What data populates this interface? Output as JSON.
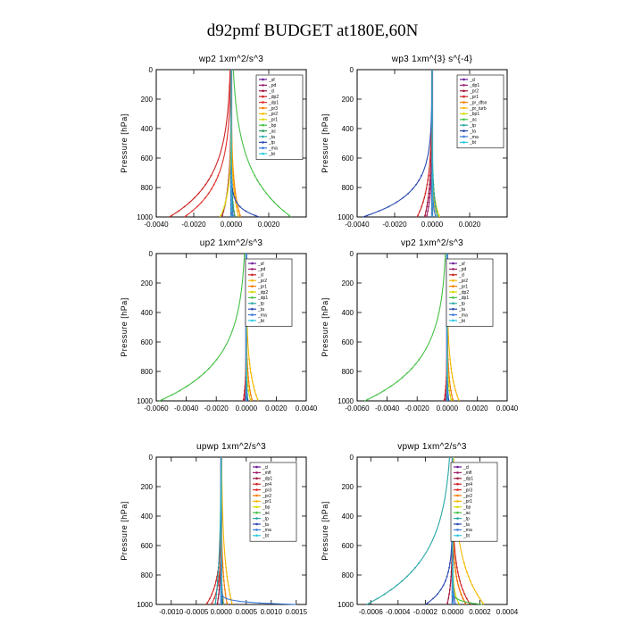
{
  "figure_title": "d92pmf  BUDGET at180E,60N",
  "chart_data": [
    {
      "type": "line",
      "title": "wp2   1xm^2/s^3",
      "ylabel": "Pressure [hPa]",
      "xlim": [
        -0.004,
        0.004
      ],
      "ylim": [
        1000,
        0
      ],
      "xticks": [
        "-0.0040",
        "-0.0020",
        "0.0000",
        "0.0020"
      ],
      "xtick_values": [
        -0.004,
        -0.002,
        0,
        0.002
      ],
      "yticks": [
        "0",
        "200",
        "400",
        "600",
        "800",
        "1000"
      ],
      "series": [
        {
          "name": "_sf",
          "color": "#6a1b9a",
          "anchor_x": 0,
          "peak_x": 0,
          "depth": 0
        },
        {
          "name": "_pd",
          "color": "#9c1f6e",
          "anchor_x": 0,
          "peak_x": 0.0001,
          "depth": 150
        },
        {
          "name": "_cl",
          "color": "#a0143c",
          "anchor_x": 0,
          "peak_x": -0.0005,
          "depth": 200
        },
        {
          "name": "_dp2",
          "color": "#cc2222",
          "anchor_x": 0,
          "peak_x": -0.0033,
          "depth": 250
        },
        {
          "name": "_dp1",
          "color": "#e0302a",
          "anchor_x": 0,
          "peak_x": -0.0025,
          "depth": 220
        },
        {
          "name": "_pr3",
          "color": "#f57c00",
          "anchor_x": 0,
          "peak_x": 0.0005,
          "depth": 200
        },
        {
          "name": "_pr2",
          "color": "#f5b800",
          "anchor_x": 0,
          "peak_x": 0.0004,
          "depth": 180
        },
        {
          "name": "_pr1",
          "color": "#d9d900",
          "anchor_x": 0,
          "peak_x": -0.0006,
          "depth": 150
        },
        {
          "name": "_bp",
          "color": "#44c044",
          "anchor_x": 0,
          "peak_x": 0.0032,
          "depth": 300
        },
        {
          "name": "_ac",
          "color": "#2a9a5a",
          "anchor_x": 0,
          "peak_x": 0.0002,
          "depth": 120
        },
        {
          "name": "_ta",
          "color": "#2aa6a6",
          "anchor_x": 0,
          "peak_x": 0.0001,
          "depth": 100
        },
        {
          "name": "_tp",
          "color": "#2a4ab0",
          "anchor_x": 0,
          "peak_x": 0.0015,
          "depth": 60
        },
        {
          "name": "_ma",
          "color": "#3a7ad8",
          "anchor_x": 0,
          "peak_x": 0.0001,
          "depth": 100
        },
        {
          "name": "_bt",
          "color": "#28c8e0",
          "anchor_x": 0,
          "peak_x": 0,
          "depth": 60
        }
      ]
    },
    {
      "type": "line",
      "title": "wp3   1xm^{3} s^{-4}",
      "ylabel": "Pressure [hPa]",
      "xlim": [
        -0.004,
        0.004
      ],
      "ylim": [
        1000,
        0
      ],
      "xticks": [
        "-0.0040",
        "-0.0020",
        "0.0000",
        "0.0020"
      ],
      "xtick_values": [
        -0.004,
        -0.002,
        0,
        0.002
      ],
      "yticks": [
        "0",
        "200",
        "400",
        "600",
        "800",
        "1000"
      ],
      "series": [
        {
          "name": "_cl",
          "color": "#6a1b9a",
          "anchor_x": 0,
          "peak_x": 0,
          "depth": 0
        },
        {
          "name": "_dp1",
          "color": "#9c1f6e",
          "anchor_x": 0,
          "peak_x": -0.0003,
          "depth": 150
        },
        {
          "name": "_pr2",
          "color": "#a0143c",
          "anchor_x": 0,
          "peak_x": -0.0004,
          "depth": 200
        },
        {
          "name": "_pr1",
          "color": "#cc2222",
          "anchor_x": 0,
          "peak_x": -0.0008,
          "depth": 200
        },
        {
          "name": "_pr_dfsn",
          "color": "#f57c00",
          "anchor_x": 0,
          "peak_x": 0.0004,
          "depth": 120
        },
        {
          "name": "_pr_turb",
          "color": "#f5b800",
          "anchor_x": 0,
          "peak_x": 0.0003,
          "depth": 100
        },
        {
          "name": "_bp1",
          "color": "#d9d900",
          "anchor_x": 0,
          "peak_x": 0.0004,
          "depth": 120
        },
        {
          "name": "_ac",
          "color": "#44c044",
          "anchor_x": 0,
          "peak_x": 0.0002,
          "depth": 80
        },
        {
          "name": "_tp",
          "color": "#2aa6a6",
          "anchor_x": 0,
          "peak_x": 0.0003,
          "depth": 150
        },
        {
          "name": "_ta",
          "color": "#2a4ab0",
          "anchor_x": 0,
          "peak_x": -0.0037,
          "depth": 150
        },
        {
          "name": "_ma",
          "color": "#3a7ad8",
          "anchor_x": 0,
          "peak_x": 0.0002,
          "depth": 80
        },
        {
          "name": "_bt",
          "color": "#28c8e0",
          "anchor_x": 0,
          "peak_x": 0,
          "depth": 60
        }
      ]
    },
    {
      "type": "line",
      "title": "up2   1xm^2/s^3",
      "ylabel": "Pressure [hPa]",
      "xlim": [
        -0.006,
        0.004
      ],
      "ylim": [
        1000,
        0
      ],
      "xticks": [
        "-0.0060",
        "-0.0040",
        "-0.0020",
        "0.0000",
        "0.0020",
        "0.0040"
      ],
      "xtick_values": [
        -0.006,
        -0.004,
        -0.002,
        0,
        0.002,
        0.004
      ],
      "yticks": [
        "0",
        "200",
        "400",
        "600",
        "800",
        "1000"
      ],
      "series": [
        {
          "name": "_sf",
          "color": "#6a1b9a",
          "anchor_x": 0,
          "peak_x": 0,
          "depth": 0
        },
        {
          "name": "_pd",
          "color": "#9c1f6e",
          "anchor_x": 0,
          "peak_x": -0.0001,
          "depth": 100
        },
        {
          "name": "_cl",
          "color": "#cc2222",
          "anchor_x": 0,
          "peak_x": -0.0002,
          "depth": 120
        },
        {
          "name": "_pr2",
          "color": "#f5b800",
          "anchor_x": 0,
          "peak_x": 0.0008,
          "depth": 200
        },
        {
          "name": "_pr1",
          "color": "#f57c00",
          "anchor_x": 0,
          "peak_x": 0.0004,
          "depth": 150
        },
        {
          "name": "_dp2",
          "color": "#d9d900",
          "anchor_x": 0,
          "peak_x": 0.0003,
          "depth": 100
        },
        {
          "name": "_dp1",
          "color": "#44c044",
          "anchor_x": 0,
          "peak_x": -0.0058,
          "depth": 260
        },
        {
          "name": "_tp",
          "color": "#2aa6a6",
          "anchor_x": 0,
          "peak_x": 0.0001,
          "depth": 80
        },
        {
          "name": "_ta",
          "color": "#2a4ab0",
          "anchor_x": 0,
          "peak_x": 0.0001,
          "depth": 80
        },
        {
          "name": "_ma",
          "color": "#3a7ad8",
          "anchor_x": 0,
          "peak_x": 0,
          "depth": 60
        },
        {
          "name": "_bt",
          "color": "#28c8e0",
          "anchor_x": 0,
          "peak_x": 0,
          "depth": 60
        }
      ]
    },
    {
      "type": "line",
      "title": "vp2   1xm^2/s^3",
      "ylabel": "Pressure [hPa]",
      "xlim": [
        -0.006,
        0.004
      ],
      "ylim": [
        1000,
        0
      ],
      "xticks": [
        "-0.0060",
        "-0.0040",
        "-0.0020",
        "0.0000",
        "0.0020",
        "0.0040"
      ],
      "xtick_values": [
        -0.006,
        -0.004,
        -0.002,
        0,
        0.002,
        0.004
      ],
      "yticks": [
        "0",
        "200",
        "400",
        "600",
        "800",
        "1000"
      ],
      "series": [
        {
          "name": "_sf",
          "color": "#6a1b9a",
          "anchor_x": 0,
          "peak_x": 0,
          "depth": 0
        },
        {
          "name": "_pd",
          "color": "#9c1f6e",
          "anchor_x": 0,
          "peak_x": -0.0001,
          "depth": 100
        },
        {
          "name": "_cl",
          "color": "#cc2222",
          "anchor_x": 0,
          "peak_x": -0.0002,
          "depth": 120
        },
        {
          "name": "_pr2",
          "color": "#f5b800",
          "anchor_x": 0,
          "peak_x": 0.0008,
          "depth": 200
        },
        {
          "name": "_pr1",
          "color": "#f57c00",
          "anchor_x": 0,
          "peak_x": 0.0004,
          "depth": 150
        },
        {
          "name": "_dp2",
          "color": "#d9d900",
          "anchor_x": 0,
          "peak_x": 0.0003,
          "depth": 100
        },
        {
          "name": "_dp1",
          "color": "#44c044",
          "anchor_x": 0,
          "peak_x": -0.0055,
          "depth": 260
        },
        {
          "name": "_tp",
          "color": "#2aa6a6",
          "anchor_x": 0,
          "peak_x": 0.0001,
          "depth": 80
        },
        {
          "name": "_ta",
          "color": "#2a4ab0",
          "anchor_x": 0,
          "peak_x": 0.0001,
          "depth": 80
        },
        {
          "name": "_ma",
          "color": "#3a7ad8",
          "anchor_x": 0,
          "peak_x": 0,
          "depth": 60
        },
        {
          "name": "_bt",
          "color": "#28c8e0",
          "anchor_x": 0,
          "peak_x": 0,
          "depth": 60
        }
      ]
    },
    {
      "type": "line",
      "title": "upwp   1xm^2/s^3",
      "ylabel": "Pressure [hPa]",
      "xlim": [
        -0.0013,
        0.0017
      ],
      "ylim": [
        1000,
        0
      ],
      "xticks": [
        "-0.0010",
        "-0.0005",
        "0.0000",
        "0.0005",
        "0.0010",
        "0.0015"
      ],
      "xtick_values": [
        -0.001,
        -0.0005,
        0,
        0.0005,
        0.001,
        0.0015
      ],
      "yticks": [
        "0",
        "200",
        "400",
        "600",
        "800",
        "1000"
      ],
      "series": [
        {
          "name": "_cl",
          "color": "#6a1b9a",
          "anchor_x": 0,
          "peak_x": 0,
          "depth": 0
        },
        {
          "name": "_mfl",
          "color": "#9c1f6e",
          "anchor_x": 0,
          "peak_x": 5e-05,
          "depth": 100
        },
        {
          "name": "_dp1",
          "color": "#a0143c",
          "anchor_x": 0,
          "peak_x": -8e-05,
          "depth": 150
        },
        {
          "name": "_pr4",
          "color": "#cc2222",
          "anchor_x": 0,
          "peak_x": -0.0003,
          "depth": 150
        },
        {
          "name": "_pr3",
          "color": "#e0302a",
          "anchor_x": 0,
          "peak_x": -0.0002,
          "depth": 120
        },
        {
          "name": "_pr2",
          "color": "#f57c00",
          "anchor_x": 0,
          "peak_x": 0.00012,
          "depth": 200
        },
        {
          "name": "_pr1",
          "color": "#f5b800",
          "anchor_x": 0,
          "peak_x": 0.00022,
          "depth": 300
        },
        {
          "name": "_bp",
          "color": "#d9d900",
          "anchor_x": 0,
          "peak_x": 5e-05,
          "depth": 80
        },
        {
          "name": "_ac",
          "color": "#44c044",
          "anchor_x": 0,
          "peak_x": 4e-05,
          "depth": 80
        },
        {
          "name": "_tp",
          "color": "#2aa6a6",
          "anchor_x": 0,
          "peak_x": -0.00012,
          "depth": 320
        },
        {
          "name": "_ta",
          "color": "#2a4ab0",
          "anchor_x": 0,
          "peak_x": 3e-05,
          "depth": 80
        },
        {
          "name": "_ma",
          "color": "#3a7ad8",
          "anchor_x": 0,
          "peak_x": 0.0015,
          "depth": 15
        },
        {
          "name": "_bt",
          "color": "#28c8e0",
          "anchor_x": 0,
          "peak_x": 0,
          "depth": 60
        }
      ]
    },
    {
      "type": "line",
      "title": "vpwp   1xm^2/s^3",
      "ylabel": "Pressure [hPa]",
      "xlim": [
        -0.0007,
        0.0004
      ],
      "ylim": [
        1000,
        0
      ],
      "xticks": [
        "-0.0006",
        "-0.0004",
        "-0.0002",
        "0.0000",
        "0.0002",
        "0.0004"
      ],
      "xtick_values": [
        -0.0006,
        -0.0004,
        -0.0002,
        0,
        0.0002,
        0.0004
      ],
      "yticks": [
        "0",
        "200",
        "400",
        "600",
        "800",
        "1000"
      ],
      "series": [
        {
          "name": "_cl",
          "color": "#6a1b9a",
          "anchor_x": 0,
          "peak_x": 0,
          "depth": 0
        },
        {
          "name": "_mfl",
          "color": "#9c1f6e",
          "anchor_x": 0,
          "peak_x": 2e-05,
          "depth": 100
        },
        {
          "name": "_dp1",
          "color": "#a0143c",
          "anchor_x": 0,
          "peak_x": -4e-05,
          "depth": 150
        },
        {
          "name": "_pr4",
          "color": "#cc2222",
          "anchor_x": 0,
          "peak_x": 0.00013,
          "depth": 180
        },
        {
          "name": "_pr3",
          "color": "#e0302a",
          "anchor_x": 0,
          "peak_x": 0.0001,
          "depth": 150
        },
        {
          "name": "_pr2",
          "color": "#f57c00",
          "anchor_x": 0,
          "peak_x": 0.0001,
          "depth": 150
        },
        {
          "name": "_pr1",
          "color": "#f5b800",
          "anchor_x": 0,
          "peak_x": 0.00023,
          "depth": 280
        },
        {
          "name": "_bp",
          "color": "#d9d900",
          "anchor_x": 0,
          "peak_x": 5e-05,
          "depth": 80
        },
        {
          "name": "_ac",
          "color": "#44c044",
          "anchor_x": 0,
          "peak_x": 0.00022,
          "depth": 20
        },
        {
          "name": "_tp",
          "color": "#2aa6a6",
          "anchor_x": 0,
          "peak_x": -0.00063,
          "depth": 300
        },
        {
          "name": "_ta",
          "color": "#2a4ab0",
          "anchor_x": 0,
          "peak_x": -0.0002,
          "depth": 120
        },
        {
          "name": "_ma",
          "color": "#3a7ad8",
          "anchor_x": 0,
          "peak_x": 2e-05,
          "depth": 80
        },
        {
          "name": "_bt",
          "color": "#28c8e0",
          "anchor_x": 0,
          "peak_x": 0,
          "depth": 60
        }
      ]
    }
  ]
}
